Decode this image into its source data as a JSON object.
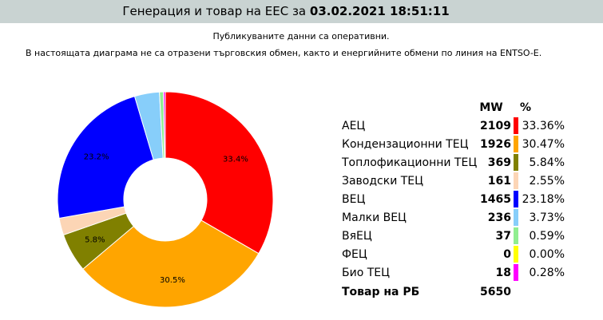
{
  "header": {
    "title": "Генерация и товар на ЕЕС за",
    "datetime": "03.02.2021 18:51:11"
  },
  "notes": [
    "Публикуваните данни са оперативни.",
    "В настоящата диаграма не са отразени търговския обмен, както и енергийните обмени по линия на ENTSO-E."
  ],
  "chart_data": {
    "type": "pie",
    "categories": [
      "АЕЦ",
      "Кондензационни ТЕЦ",
      "Топлофикационни ТЕЦ",
      "Заводски ТЕЦ",
      "ВЕЦ",
      "Малки ВЕЦ",
      "ВяЕЦ",
      "ФЕЦ",
      "Био ТЕЦ"
    ],
    "values": [
      33.36,
      30.47,
      5.84,
      2.55,
      23.18,
      3.73,
      0.59,
      0.0,
      0.28
    ],
    "value_labels": [
      "33.36%",
      "30.47%",
      "5.84%",
      "2.55%",
      "23.18%",
      "3.73%",
      "0.59%",
      "0.00%",
      "0.28%"
    ],
    "slice_labels": [
      "33.4%",
      "30.5%",
      "5.8%",
      null,
      "23.2%",
      null,
      null,
      null,
      null
    ],
    "mw": [
      2109,
      1926,
      369,
      161,
      1465,
      236,
      37,
      0,
      18
    ],
    "colors": [
      "#ff0000",
      "#ffa500",
      "#808000",
      "#fcd5b5",
      "#0000ff",
      "#87cefa",
      "#90ee90",
      "#ffff00",
      "#ff00ff"
    ],
    "mw_header": "MW",
    "pct_header": "%",
    "total_label": "Товар на РБ",
    "total": 5650
  }
}
